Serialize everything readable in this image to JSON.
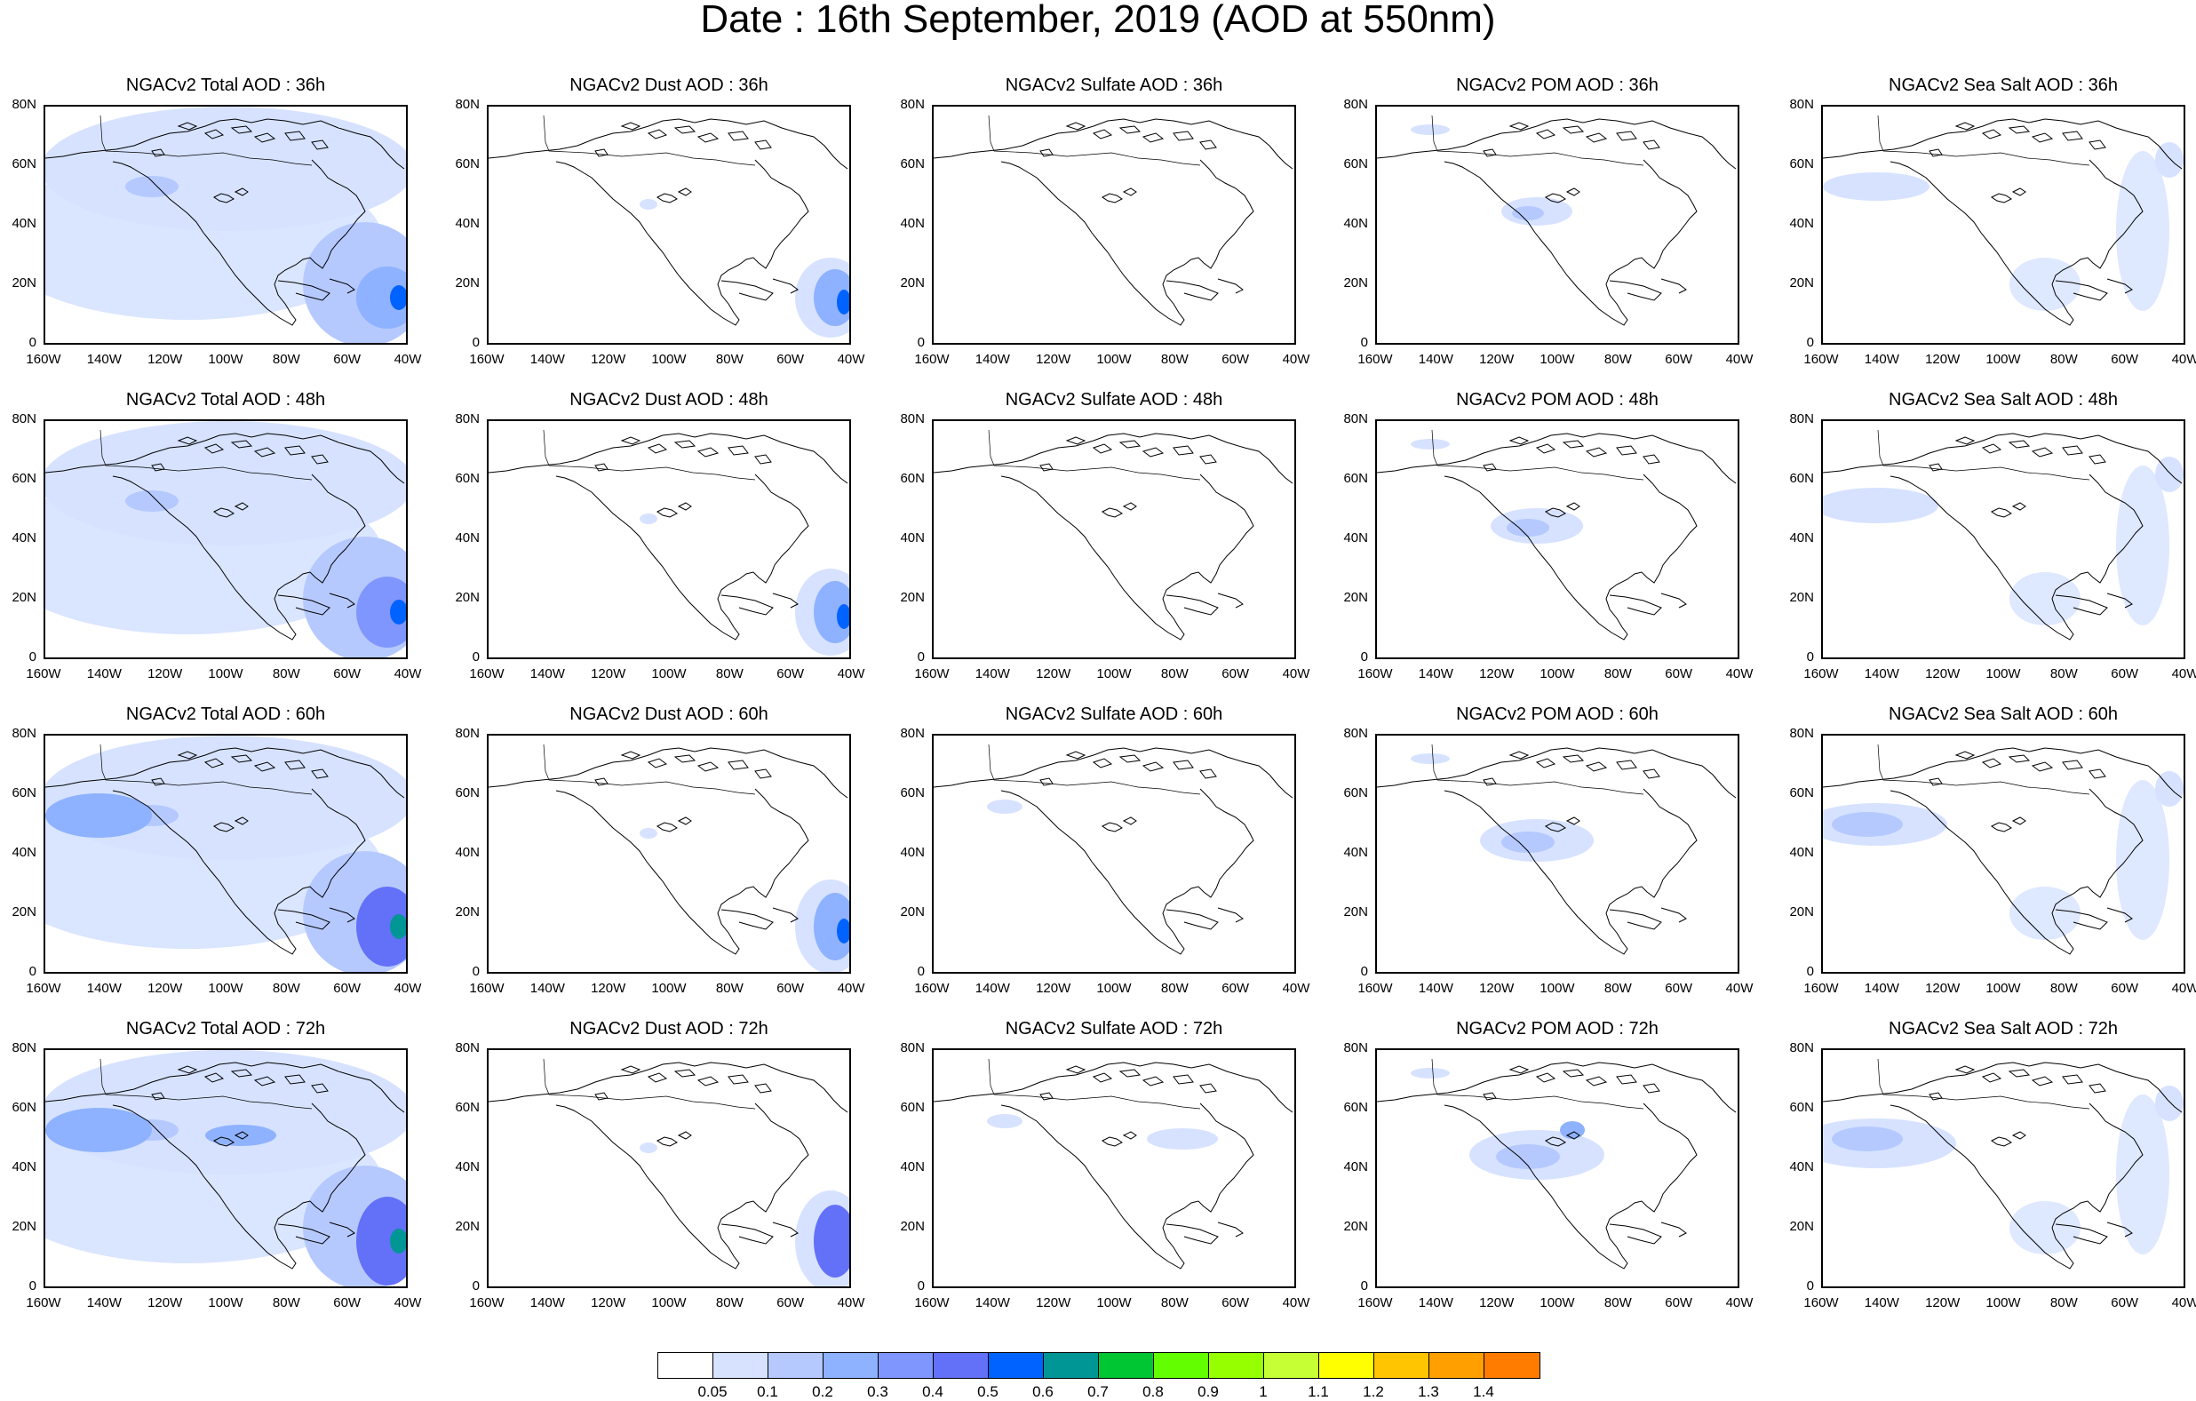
{
  "title": "Date : 16th September, 2019 (AOD at 550nm)",
  "map_data": {
    "region": "North America",
    "lat_ticks": [
      "80N",
      "60N",
      "40N",
      "20N",
      "0"
    ],
    "lon_ticks": [
      "160W",
      "140W",
      "120W",
      "100W",
      "80W",
      "60W",
      "40W"
    ],
    "rows": [
      "36h",
      "48h",
      "60h",
      "72h"
    ],
    "columns": [
      "Total",
      "Dust",
      "Sulfate",
      "POM",
      "Sea Salt"
    ],
    "panels": [
      [
        {
          "title": "NGACv2 Total AOD : 36h"
        },
        {
          "title": "NGACv2 Dust AOD : 36h"
        },
        {
          "title": "NGACv2 Sulfate AOD : 36h"
        },
        {
          "title": "NGACv2 POM AOD : 36h"
        },
        {
          "title": "NGACv2 Sea Salt AOD : 36h"
        }
      ],
      [
        {
          "title": "NGACv2 Total AOD : 48h"
        },
        {
          "title": "NGACv2 Dust AOD : 48h"
        },
        {
          "title": "NGACv2 Sulfate AOD : 48h"
        },
        {
          "title": "NGACv2 POM AOD : 48h"
        },
        {
          "title": "NGACv2 Sea Salt AOD : 48h"
        }
      ],
      [
        {
          "title": "NGACv2 Total AOD : 60h"
        },
        {
          "title": "NGACv2 Dust AOD : 60h"
        },
        {
          "title": "NGACv2 Sulfate AOD : 60h"
        },
        {
          "title": "NGACv2 POM AOD : 60h"
        },
        {
          "title": "NGACv2 Sea Salt AOD : 60h"
        }
      ],
      [
        {
          "title": "NGACv2 Total AOD : 72h"
        },
        {
          "title": "NGACv2 Dust AOD : 72h"
        },
        {
          "title": "NGACv2 Sulfate AOD : 72h"
        },
        {
          "title": "NGACv2 POM AOD : 72h"
        },
        {
          "title": "NGACv2 Sea Salt  AOD : 72h"
        }
      ]
    ]
  },
  "colorbar": {
    "labels": [
      "0.05",
      "0.1",
      "0.2",
      "0.3",
      "0.4",
      "0.5",
      "0.6",
      "0.7",
      "0.8",
      "0.9",
      "1",
      "1.1",
      "1.2",
      "1.3",
      "1.4"
    ],
    "colors": [
      "#ffffff",
      "#d6e2ff",
      "#b5c9ff",
      "#8eb2ff",
      "#7f96ff",
      "#6370f8",
      "#0063ff",
      "#009696",
      "#00c633",
      "#63ff00",
      "#96ff00",
      "#c6ff33",
      "#ffff00",
      "#ffc600",
      "#ffa000",
      "#ff7c00",
      "#ff1900"
    ]
  }
}
